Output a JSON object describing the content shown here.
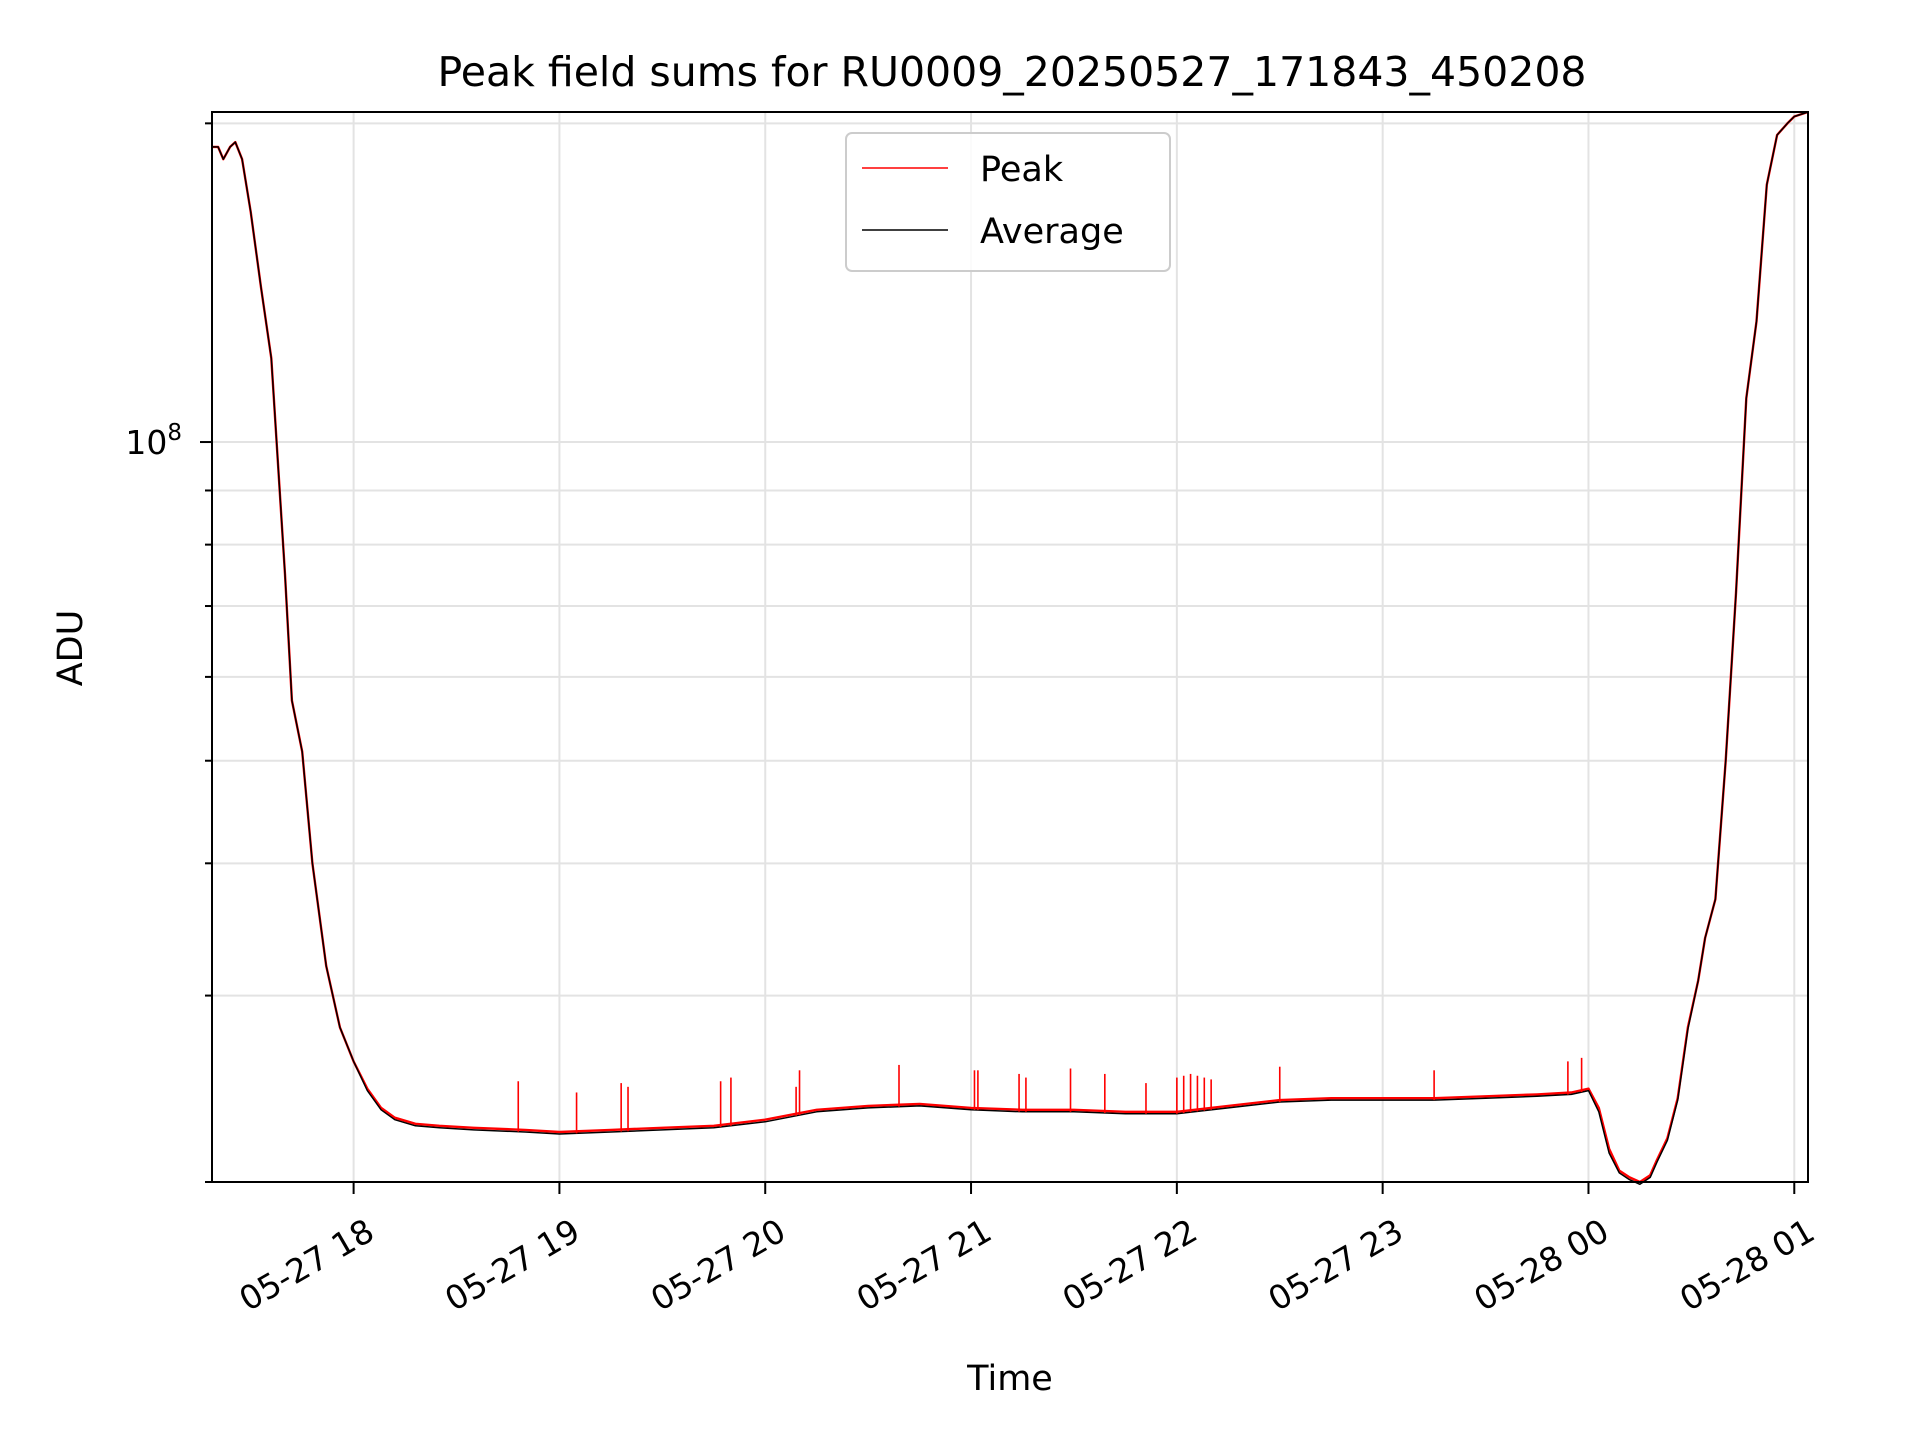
{
  "chart_data": {
    "type": "line",
    "title": "Peak field sums for RU0009_20250527_171843_450208",
    "xlabel": "Time",
    "ylabel": "ADU",
    "x_ticks": [
      "05-27 18",
      "05-27 19",
      "05-27 20",
      "05-27 21",
      "05-27 22",
      "05-27 23",
      "05-28 00",
      "05-28 01"
    ],
    "y_ticks": [
      {
        "value": 100000000,
        "base": "10",
        "exponent": "8"
      }
    ],
    "y_scale": "log",
    "xlim": [
      "2025-05-27T17:18:43",
      "2025-05-28T01:04:00"
    ],
    "ylim": [
      20000000,
      205000000
    ],
    "grid": true,
    "legend_position": "top-center",
    "colors": {
      "peak": "#ff0000",
      "average": "#000000"
    },
    "series": [
      {
        "name": "Peak",
        "x": [
          "2025-05-27T17:18:43",
          "2025-05-27T17:20:30",
          "2025-05-27T17:22:00",
          "2025-05-27T17:24:00",
          "2025-05-27T17:25:30",
          "2025-05-27T17:27:30",
          "2025-05-27T17:30:00",
          "2025-05-27T17:33:00",
          "2025-05-27T17:36:00",
          "2025-05-27T17:38:00",
          "2025-05-27T17:40:00",
          "2025-05-27T17:42:00",
          "2025-05-27T17:45:00",
          "2025-05-27T17:48:00",
          "2025-05-27T17:52:00",
          "2025-05-27T17:56:00",
          "2025-05-27T18:00:00",
          "2025-05-27T18:04:00",
          "2025-05-27T18:08:00",
          "2025-05-27T18:12:00",
          "2025-05-27T18:18:00",
          "2025-05-27T18:25:00",
          "2025-05-27T18:35:00",
          "2025-05-27T18:50:00",
          "2025-05-27T19:00:00",
          "2025-05-27T19:15:00",
          "2025-05-27T19:30:00",
          "2025-05-27T19:45:00",
          "2025-05-27T20:00:00",
          "2025-05-27T20:15:00",
          "2025-05-27T20:30:00",
          "2025-05-27T20:45:00",
          "2025-05-27T21:00:00",
          "2025-05-27T21:15:00",
          "2025-05-27T21:30:00",
          "2025-05-27T21:45:00",
          "2025-05-27T22:00:00",
          "2025-05-27T22:15:00",
          "2025-05-27T22:30:00",
          "2025-05-27T22:45:00",
          "2025-05-27T23:00:00",
          "2025-05-27T23:15:00",
          "2025-05-27T23:30:00",
          "2025-05-27T23:45:00",
          "2025-05-27T23:55:00",
          "2025-05-28T00:00:00",
          "2025-05-28T00:03:00",
          "2025-05-28T00:06:00",
          "2025-05-28T00:09:00",
          "2025-05-28T00:12:00",
          "2025-05-28T00:15:00",
          "2025-05-28T00:18:00",
          "2025-05-28T00:20:00",
          "2025-05-28T00:23:00",
          "2025-05-28T00:26:00",
          "2025-05-28T00:29:00",
          "2025-05-28T00:32:00",
          "2025-05-28T00:34:00",
          "2025-05-28T00:37:00",
          "2025-05-28T00:40:00",
          "2025-05-28T00:43:00",
          "2025-05-28T00:46:00",
          "2025-05-28T00:49:00",
          "2025-05-28T00:52:00",
          "2025-05-28T00:55:00",
          "2025-05-28T00:58:00",
          "2025-05-28T01:00:00",
          "2025-05-28T01:04:00"
        ],
        "y": [
          190000000,
          190000000,
          185000000,
          190000000,
          192000000,
          185000000,
          165000000,
          140000000,
          120000000,
          95000000,
          75000000,
          57000000,
          51000000,
          40000000,
          32000000,
          28000000,
          26000000,
          24500000,
          23500000,
          23000000,
          22700000,
          22600000,
          22500000,
          22400000,
          22300000,
          22400000,
          22500000,
          22600000,
          22900000,
          23400000,
          23600000,
          23700000,
          23500000,
          23400000,
          23400000,
          23300000,
          23300000,
          23600000,
          23900000,
          24000000,
          24000000,
          24000000,
          24100000,
          24200000,
          24300000,
          24500000,
          23500000,
          21500000,
          20500000,
          20200000,
          20000000,
          20300000,
          21000000,
          22000000,
          24000000,
          28000000,
          31000000,
          34000000,
          37000000,
          50000000,
          72000000,
          110000000,
          130000000,
          175000000,
          195000000,
          200000000,
          203000000,
          205000000
        ]
      },
      {
        "name": "Average",
        "x": [
          "2025-05-27T17:18:43",
          "2025-05-27T17:20:30",
          "2025-05-27T17:22:00",
          "2025-05-27T17:24:00",
          "2025-05-27T17:25:30",
          "2025-05-27T17:27:30",
          "2025-05-27T17:30:00",
          "2025-05-27T17:33:00",
          "2025-05-27T17:36:00",
          "2025-05-27T17:38:00",
          "2025-05-27T17:40:00",
          "2025-05-27T17:42:00",
          "2025-05-27T17:45:00",
          "2025-05-27T17:48:00",
          "2025-05-27T17:52:00",
          "2025-05-27T17:56:00",
          "2025-05-27T18:00:00",
          "2025-05-27T18:04:00",
          "2025-05-27T18:08:00",
          "2025-05-27T18:12:00",
          "2025-05-27T18:18:00",
          "2025-05-27T18:25:00",
          "2025-05-27T18:35:00",
          "2025-05-27T18:50:00",
          "2025-05-27T19:00:00",
          "2025-05-27T19:15:00",
          "2025-05-27T19:30:00",
          "2025-05-27T19:45:00",
          "2025-05-27T20:00:00",
          "2025-05-27T20:15:00",
          "2025-05-27T20:30:00",
          "2025-05-27T20:45:00",
          "2025-05-27T21:00:00",
          "2025-05-27T21:15:00",
          "2025-05-27T21:30:00",
          "2025-05-27T21:45:00",
          "2025-05-27T22:00:00",
          "2025-05-27T22:15:00",
          "2025-05-27T22:30:00",
          "2025-05-27T22:45:00",
          "2025-05-27T23:00:00",
          "2025-05-27T23:15:00",
          "2025-05-27T23:30:00",
          "2025-05-27T23:45:00",
          "2025-05-27T23:55:00",
          "2025-05-28T00:00:00",
          "2025-05-28T00:03:00",
          "2025-05-28T00:06:00",
          "2025-05-28T00:09:00",
          "2025-05-28T00:12:00",
          "2025-05-28T00:15:00",
          "2025-05-28T00:18:00",
          "2025-05-28T00:20:00",
          "2025-05-28T00:23:00",
          "2025-05-28T00:26:00",
          "2025-05-28T00:29:00",
          "2025-05-28T00:32:00",
          "2025-05-28T00:34:00",
          "2025-05-28T00:37:00",
          "2025-05-28T00:40:00",
          "2025-05-28T00:43:00",
          "2025-05-28T00:46:00",
          "2025-05-28T00:49:00",
          "2025-05-28T00:52:00",
          "2025-05-28T00:55:00",
          "2025-05-28T00:58:00",
          "2025-05-28T01:00:00",
          "2025-05-28T01:04:00"
        ],
        "y": [
          190000000,
          190000000,
          185000000,
          190000000,
          192000000,
          185000000,
          165000000,
          140000000,
          120000000,
          95000000,
          75000000,
          57000000,
          51000000,
          40000000,
          32000000,
          28000000,
          26000000,
          24400000,
          23400000,
          22900000,
          22600000,
          22500000,
          22400000,
          22300000,
          22200000,
          22300000,
          22400000,
          22500000,
          22800000,
          23300000,
          23500000,
          23600000,
          23400000,
          23300000,
          23300000,
          23200000,
          23200000,
          23500000,
          23800000,
          23900000,
          23900000,
          23900000,
          24000000,
          24100000,
          24200000,
          24400000,
          23300000,
          21300000,
          20400000,
          20100000,
          19900000,
          20200000,
          20900000,
          21900000,
          23900000,
          27900000,
          31000000,
          34000000,
          37000000,
          50000000,
          72000000,
          110000000,
          130000000,
          175000000,
          195000000,
          200000000,
          203000000,
          205000000
        ]
      }
    ],
    "annotations": {
      "peak_spikes": [
        {
          "x": "2025-05-27T18:48:00",
          "y": 24900000
        },
        {
          "x": "2025-05-27T19:05:00",
          "y": 24300000
        },
        {
          "x": "2025-05-27T19:18:00",
          "y": 24800000
        },
        {
          "x": "2025-05-27T19:20:00",
          "y": 24600000
        },
        {
          "x": "2025-05-27T19:47:00",
          "y": 24900000
        },
        {
          "x": "2025-05-27T19:50:00",
          "y": 25100000
        },
        {
          "x": "2025-05-27T20:09:00",
          "y": 24600000
        },
        {
          "x": "2025-05-27T20:10:00",
          "y": 25500000
        },
        {
          "x": "2025-05-27T20:39:00",
          "y": 25800000
        },
        {
          "x": "2025-05-27T21:01:00",
          "y": 25500000
        },
        {
          "x": "2025-05-27T21:02:00",
          "y": 25500000
        },
        {
          "x": "2025-05-27T21:14:00",
          "y": 25300000
        },
        {
          "x": "2025-05-27T21:16:00",
          "y": 25100000
        },
        {
          "x": "2025-05-27T21:29:00",
          "y": 25600000
        },
        {
          "x": "2025-05-27T21:39:00",
          "y": 25300000
        },
        {
          "x": "2025-05-27T21:51:00",
          "y": 24800000
        },
        {
          "x": "2025-05-27T22:00:00",
          "y": 25100000
        },
        {
          "x": "2025-05-27T22:02:00",
          "y": 25200000
        },
        {
          "x": "2025-05-27T22:04:00",
          "y": 25300000
        },
        {
          "x": "2025-05-27T22:06:00",
          "y": 25200000
        },
        {
          "x": "2025-05-27T22:08:00",
          "y": 25100000
        },
        {
          "x": "2025-05-27T22:10:00",
          "y": 25000000
        },
        {
          "x": "2025-05-27T22:30:00",
          "y": 25700000
        },
        {
          "x": "2025-05-27T23:15:00",
          "y": 25500000
        },
        {
          "x": "2025-05-27T23:54:00",
          "y": 26000000
        },
        {
          "x": "2025-05-27T23:58:00",
          "y": 26200000
        }
      ]
    }
  },
  "legend": {
    "items": [
      {
        "label": "Peak",
        "color": "#ff0000"
      },
      {
        "label": "Average",
        "color": "#000000"
      }
    ]
  }
}
